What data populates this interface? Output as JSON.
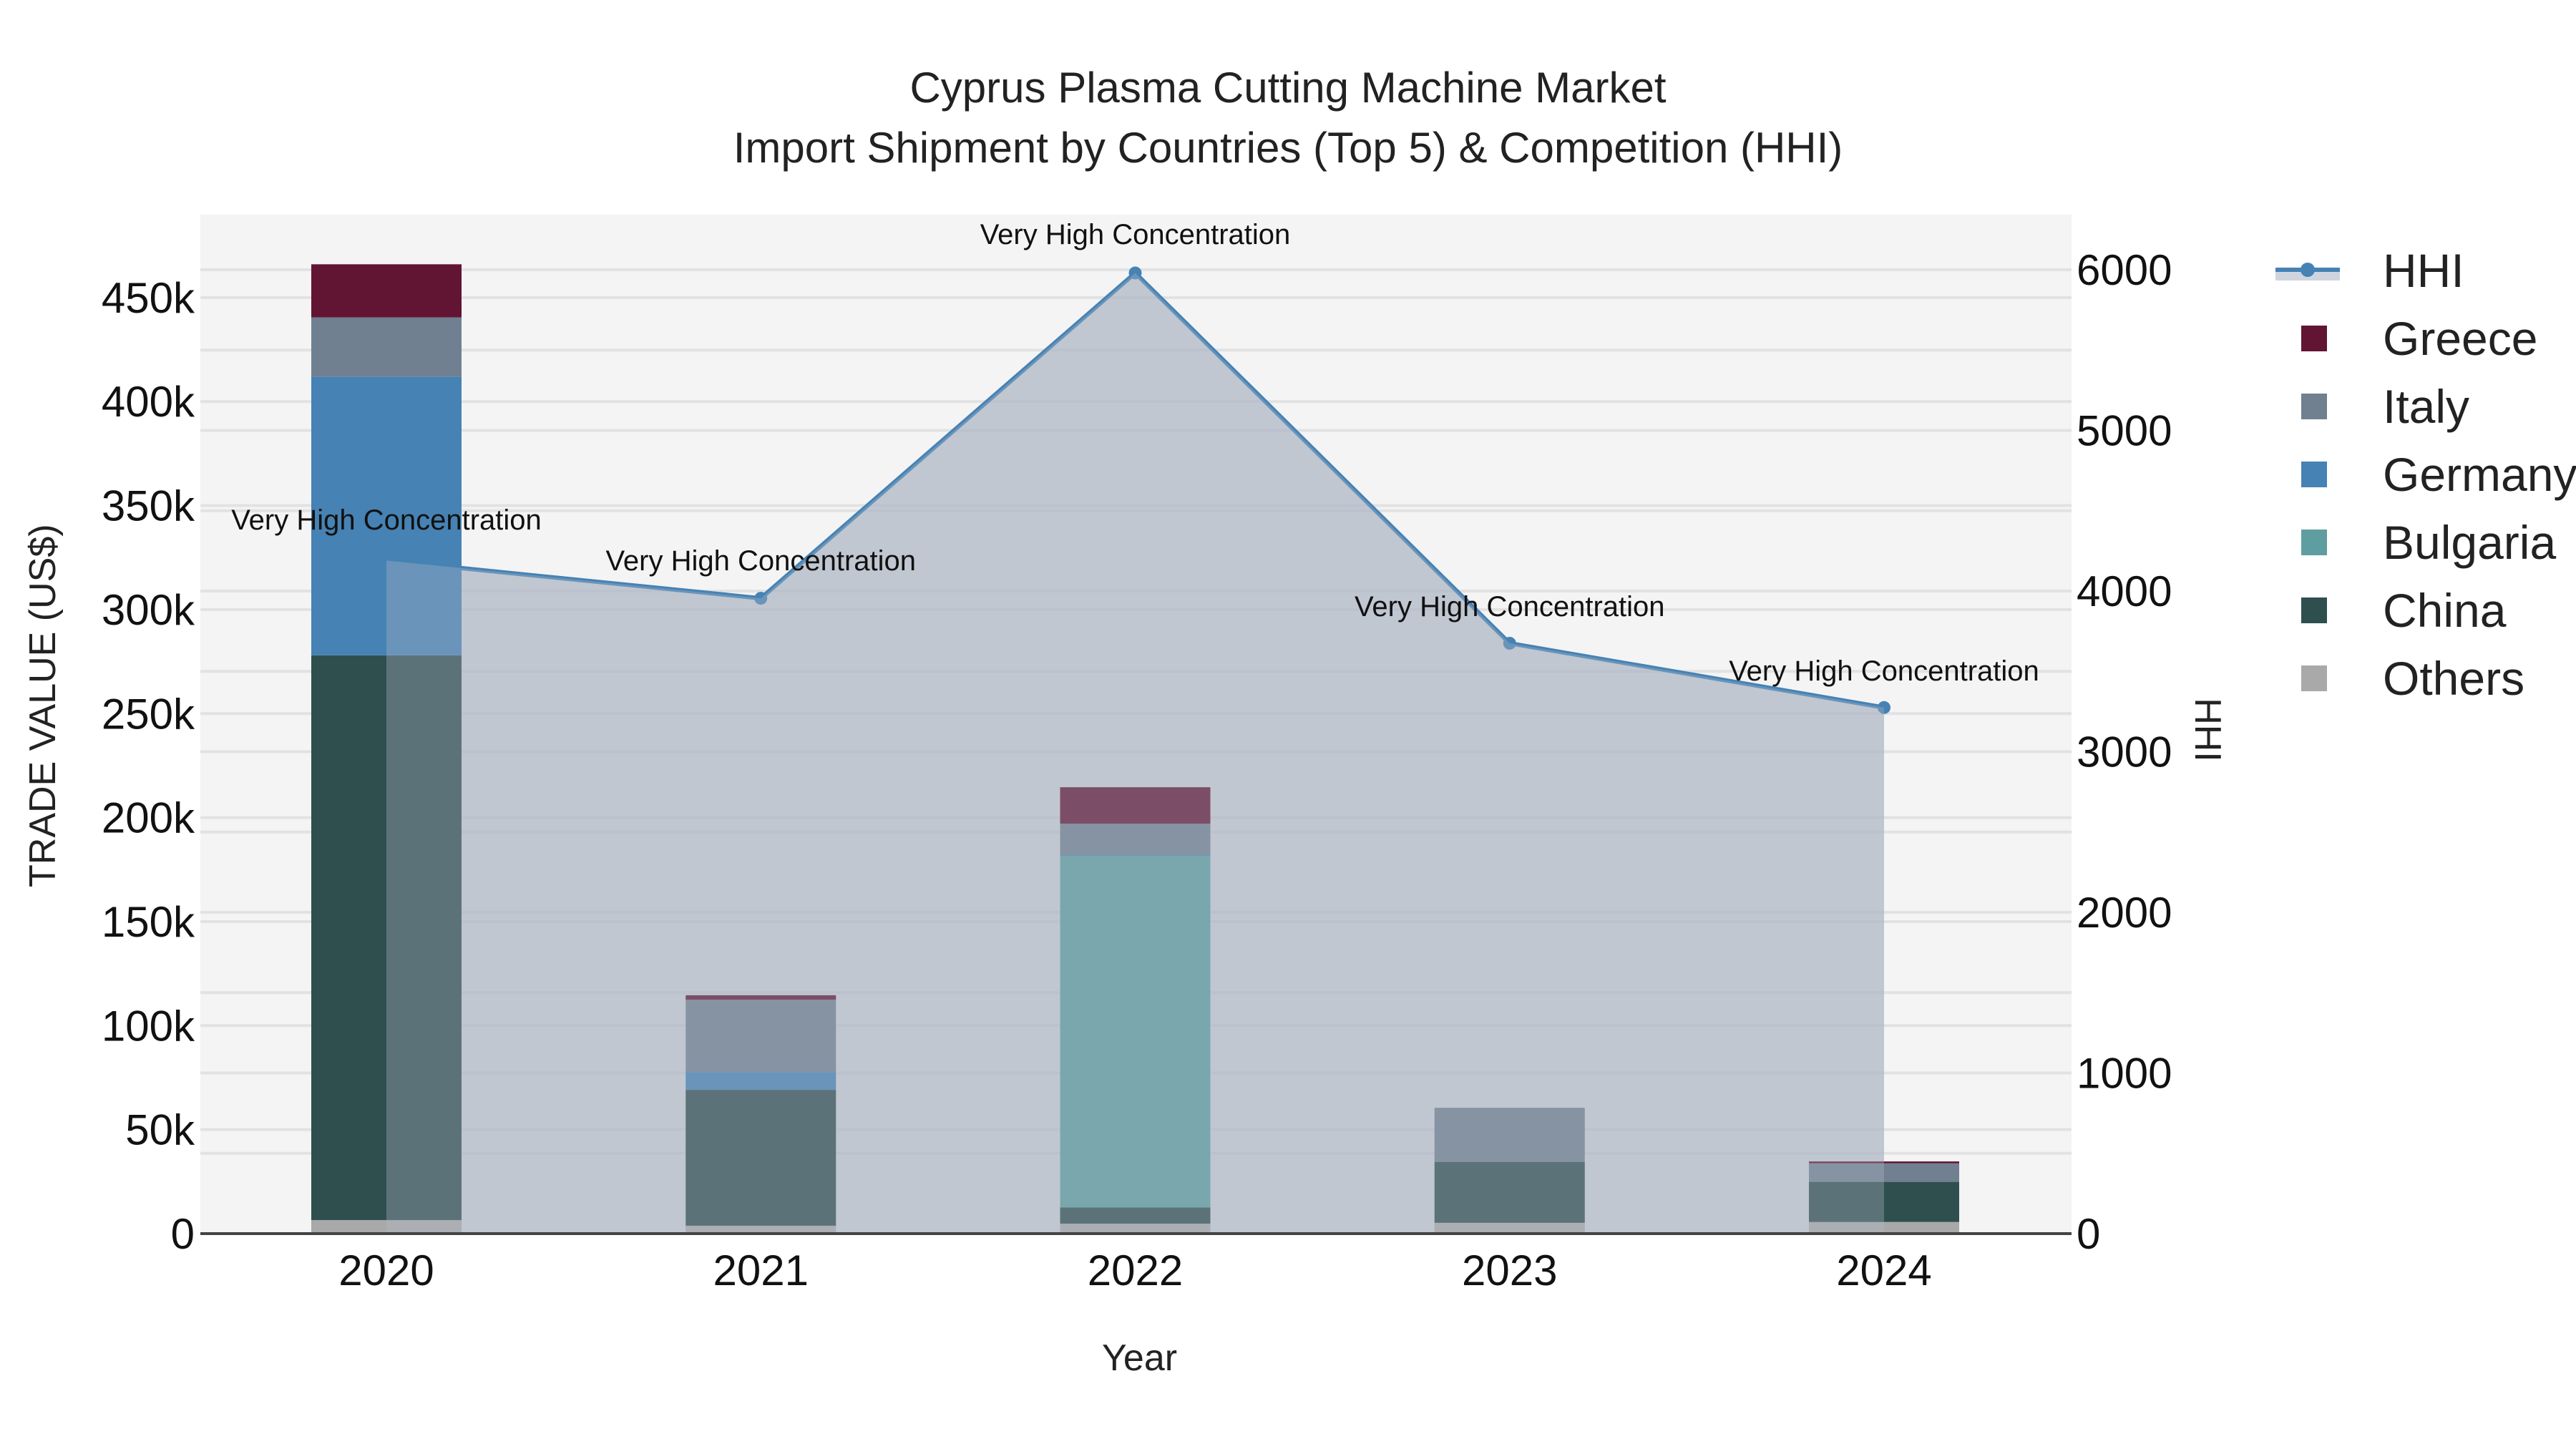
{
  "title": {
    "line1": "Cyprus Plasma Cutting Machine Market",
    "line2": "Import Shipment by Countries (Top 5) & Competition (HHI)"
  },
  "axes": {
    "x_title": "Year",
    "y_left_title": "TRADE VALUE (US$)",
    "y_right_title": "HHI",
    "y_left_ticks": [
      "0",
      "50k",
      "100k",
      "150k",
      "200k",
      "250k",
      "300k",
      "350k",
      "400k",
      "450k"
    ],
    "y_right_ticks": [
      "0",
      "1000",
      "2000",
      "3000",
      "4000",
      "5000",
      "6000"
    ]
  },
  "legend": {
    "hhi_label": "HHI",
    "items": [
      {
        "label": "Greece",
        "color": "#621433"
      },
      {
        "label": "Italy",
        "color": "#708090"
      },
      {
        "label": "Germany",
        "color": "#4682b4"
      },
      {
        "label": "Bulgaria",
        "color": "#5f9ea0"
      },
      {
        "label": "China",
        "color": "#2f4f4f"
      },
      {
        "label": "Others",
        "color": "#a9a9a9"
      }
    ]
  },
  "chart_data": {
    "type": "bar",
    "stacked": true,
    "title": "Cyprus Plasma Cutting Machine Market\nImport Shipment by Countries (Top 5) & Competition (HHI)",
    "xlabel": "Year",
    "ylabel": "TRADE VALUE (US$)",
    "y2label": "HHI",
    "categories": [
      "2020",
      "2021",
      "2022",
      "2023",
      "2024"
    ],
    "ylim": [
      0,
      490000
    ],
    "y2lim": [
      0,
      6350
    ],
    "legend_position": "right",
    "grid": true,
    "series": [
      {
        "name": "Others",
        "color": "#a9a9a9",
        "values": [
          6500,
          3800,
          4800,
          5200,
          5600
        ]
      },
      {
        "name": "China",
        "color": "#2f4f4f",
        "values": [
          271500,
          65300,
          7800,
          29200,
          19300
        ]
      },
      {
        "name": "Bulgaria",
        "color": "#5f9ea0",
        "values": [
          0,
          0,
          169000,
          0,
          0
        ]
      },
      {
        "name": "Germany",
        "color": "#4682b4",
        "values": [
          134000,
          8600,
          500,
          0,
          0
        ]
      },
      {
        "name": "Italy",
        "color": "#708090",
        "values": [
          28500,
          34800,
          15000,
          26100,
          8900
        ]
      },
      {
        "name": "Greece",
        "color": "#621433",
        "values": [
          25500,
          2100,
          17500,
          0,
          900
        ]
      }
    ],
    "line_series": {
      "name": "HHI",
      "axis": "right",
      "color": "#4682b4",
      "fill": "tozeroy",
      "values": [
        4190,
        3955,
        5980,
        3675,
        3275
      ],
      "annotations": [
        "Very High Concentration",
        "Very High Concentration",
        "Very High Concentration",
        "Very High Concentration",
        "Very High Concentration"
      ]
    }
  }
}
